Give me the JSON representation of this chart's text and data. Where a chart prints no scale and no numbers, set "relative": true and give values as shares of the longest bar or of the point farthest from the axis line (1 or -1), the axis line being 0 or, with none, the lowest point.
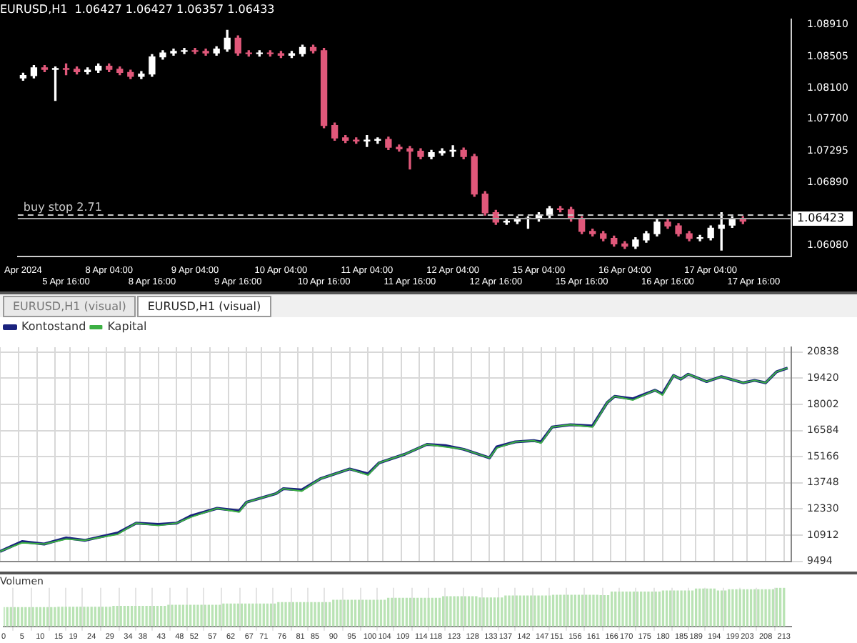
{
  "chart_data": [
    {
      "type": "candlestick",
      "title": "EURUSD,H1  1.06427 1.06427 1.06357 1.06433",
      "annotations": [
        "EURUSD,H1 (visual)",
        "EURUSD,H1 (visual)"
      ],
      "categories": [
        "Apr 2024",
        null,
        null,
        null,
        "5 Apr 16:00",
        null,
        null,
        null,
        "8 Apr 04:00",
        null,
        null,
        null,
        "8 Apr 16:00",
        null,
        null,
        null,
        "9 Apr 04:00",
        null,
        null,
        null,
        "9 Apr 16:00",
        null,
        null,
        null,
        "10 Apr 04:00",
        null,
        null,
        null,
        "10 Apr 16:00",
        null,
        null,
        null,
        "11 Apr 04:00",
        null,
        null,
        null,
        "11 Apr 16:00",
        null,
        null,
        null,
        "12 Apr 04:00",
        null,
        null,
        null,
        "12 Apr 16:00",
        null,
        null,
        null,
        "15 Apr 04:00",
        null,
        null,
        null,
        "15 Apr 16:00",
        null,
        null,
        null,
        "16 Apr 04:00",
        null,
        null,
        null,
        "16 Apr 16:00",
        null,
        null,
        null,
        "17 Apr 04:00",
        null,
        null,
        null,
        "17 Apr 16:00",
        null,
        null,
        null
      ],
      "ohlc": [
        [
          1.0823,
          1.0829,
          1.082,
          1.0826
        ],
        [
          1.0826,
          1.0839,
          1.0823,
          1.0836
        ],
        [
          1.0836,
          1.0839,
          1.0831,
          1.0834
        ],
        [
          1.0834,
          1.0837,
          1.0794,
          1.0835
        ],
        [
          1.0835,
          1.0841,
          1.0827,
          1.0834
        ],
        [
          1.0834,
          1.0837,
          1.0828,
          1.0831
        ],
        [
          1.0831,
          1.0836,
          1.0828,
          1.0833
        ],
        [
          1.0833,
          1.0841,
          1.083,
          1.0838
        ],
        [
          1.0838,
          1.0841,
          1.0831,
          1.0834
        ],
        [
          1.0834,
          1.0837,
          1.0827,
          1.083
        ],
        [
          1.083,
          1.0833,
          1.0822,
          1.0825
        ],
        [
          1.0825,
          1.0831,
          1.0822,
          1.0828
        ],
        [
          1.0828,
          1.0853,
          1.0825,
          1.085
        ],
        [
          1.085,
          1.0858,
          1.0847,
          1.0855
        ],
        [
          1.0855,
          1.086,
          1.0852,
          1.0857
        ],
        [
          1.0857,
          1.0861,
          1.0854,
          1.0858
        ],
        [
          1.0858,
          1.0861,
          1.0854,
          1.0857
        ],
        [
          1.0857,
          1.086,
          1.0852,
          1.0855
        ],
        [
          1.0855,
          1.0863,
          1.0852,
          1.086
        ],
        [
          1.086,
          1.0884,
          1.0857,
          1.0874
        ],
        [
          1.0874,
          1.0877,
          1.0852,
          1.0855
        ],
        [
          1.0855,
          1.0858,
          1.0851,
          1.0854
        ],
        [
          1.0854,
          1.0858,
          1.0851,
          1.0855
        ],
        [
          1.0855,
          1.0858,
          1.0851,
          1.0854
        ],
        [
          1.0854,
          1.0857,
          1.0849,
          1.0852
        ],
        [
          1.0852,
          1.0857,
          1.0849,
          1.0854
        ],
        [
          1.0854,
          1.0865,
          1.0851,
          1.0862
        ],
        [
          1.0862,
          1.0865,
          1.0855,
          1.0858
        ],
        [
          1.0858,
          1.0861,
          1.0759,
          1.0762
        ],
        [
          1.0762,
          1.0765,
          1.0743,
          1.0746
        ],
        [
          1.0746,
          1.0749,
          1.074,
          1.0743
        ],
        [
          1.0743,
          1.0746,
          1.0739,
          1.0742
        ],
        [
          1.0742,
          1.0749,
          1.0735,
          1.0743
        ],
        [
          1.0743,
          1.0746,
          1.0739,
          1.0744
        ],
        [
          1.0744,
          1.0747,
          1.0731,
          1.0734
        ],
        [
          1.0734,
          1.0737,
          1.0729,
          1.0732
        ],
        [
          1.0732,
          1.0735,
          1.0706,
          1.0729
        ],
        [
          1.0729,
          1.0732,
          1.0719,
          1.0722
        ],
        [
          1.0722,
          1.073,
          1.0719,
          1.0727
        ],
        [
          1.0727,
          1.0732,
          1.0724,
          1.0729
        ],
        [
          1.0729,
          1.0736,
          1.0722,
          1.073
        ],
        [
          1.073,
          1.0733,
          1.0719,
          1.0722
        ],
        [
          1.0722,
          1.0725,
          1.0671,
          1.0674
        ],
        [
          1.0674,
          1.0677,
          1.0647,
          1.065
        ],
        [
          1.065,
          1.0653,
          1.0635,
          1.0638
        ],
        [
          1.0638,
          1.0642,
          1.0635,
          1.0639
        ],
        [
          1.0639,
          1.0645,
          1.0636,
          1.0642
        ],
        [
          1.0642,
          1.0645,
          1.063,
          1.0643
        ],
        [
          1.0643,
          1.065,
          1.0639,
          1.0647
        ],
        [
          1.0647,
          1.0658,
          1.0644,
          1.0655
        ],
        [
          1.0655,
          1.0658,
          1.0651,
          1.0654
        ],
        [
          1.0654,
          1.0657,
          1.0639,
          1.0642
        ],
        [
          1.0642,
          1.0645,
          1.0623,
          1.0626
        ],
        [
          1.0626,
          1.0629,
          1.062,
          1.0623
        ],
        [
          1.0623,
          1.0626,
          1.0614,
          1.0617
        ],
        [
          1.0617,
          1.062,
          1.0607,
          1.061
        ],
        [
          1.061,
          1.0613,
          1.0604,
          1.0607
        ],
        [
          1.0607,
          1.0618,
          1.0604,
          1.0615
        ],
        [
          1.0615,
          1.0626,
          1.0612,
          1.0623
        ],
        [
          1.0623,
          1.0641,
          1.062,
          1.0638
        ],
        [
          1.0638,
          1.0641,
          1.063,
          1.0633
        ],
        [
          1.0633,
          1.0636,
          1.062,
          1.0623
        ],
        [
          1.0623,
          1.0626,
          1.0614,
          1.0617
        ],
        [
          1.0617,
          1.0621,
          1.0614,
          1.0618
        ],
        [
          1.0618,
          1.0633,
          1.0615,
          1.063
        ],
        [
          1.063,
          1.065,
          1.0602,
          1.0634
        ],
        [
          1.0634,
          1.0645,
          1.0631,
          1.0642
        ],
        [
          1.0642,
          1.0645,
          1.0636,
          1.0639
        ],
        null,
        null,
        null,
        null
      ],
      "ylim": [
        1.0594,
        1.0898
      ],
      "yticks": [
        {
          "value": 1.0891,
          "label": "1.08910"
        },
        {
          "value": 1.08505,
          "label": "1.08505"
        },
        {
          "value": 1.081,
          "label": "1.08100"
        },
        {
          "value": 1.077,
          "label": "1.07700"
        },
        {
          "value": 1.07295,
          "label": "1.07295"
        },
        {
          "value": 1.0689,
          "label": "1.06890"
        },
        {
          "value": 1.0608,
          "label": "1.06080"
        }
      ],
      "ref_lines": [
        {
          "axis": "y",
          "value": 1.0647,
          "label": "buy stop 2.71",
          "color": "#c8c8c8",
          "line_style": "dashed"
        },
        {
          "axis": "y",
          "value": 1.06423,
          "label": "1.06423",
          "color": "#a0a0a0",
          "line_style": "solid"
        }
      ],
      "grid": false
    },
    {
      "type": "line",
      "legend": "top left",
      "tick_labels": "y",
      "grid": true,
      "series": [
        {
          "name": "Kontostand",
          "color": "#1a237e",
          "x": [
            0,
            6,
            12,
            18,
            23,
            32,
            37,
            43,
            48,
            52,
            59,
            65,
            67,
            75,
            77,
            82,
            87,
            95,
            100,
            103,
            110,
            116,
            121,
            126,
            133,
            135,
            140,
            145,
            147,
            150,
            155,
            161,
            165,
            167,
            172,
            178,
            180,
            183,
            185,
            187,
            192,
            196,
            202,
            205,
            208,
            211,
            214
          ],
          "values": [
            10028,
            10562,
            10428,
            10762,
            10628,
            11029,
            11563,
            11496,
            11563,
            11963,
            12363,
            12230,
            12697,
            13164,
            13431,
            13364,
            13965,
            14499,
            14232,
            14832,
            15299,
            15833,
            15766,
            15566,
            15099,
            15700,
            15967,
            16034,
            15967,
            16768,
            16901,
            16834,
            18102,
            18436,
            18302,
            18769,
            18569,
            19570,
            19370,
            19637,
            19236,
            19503,
            19170,
            19303,
            19170,
            19770,
            19970
          ]
        },
        {
          "name": "Kapital",
          "color": "#3cb043",
          "x": [
            0,
            6,
            12,
            18,
            23,
            32,
            37,
            43,
            48,
            52,
            59,
            65,
            67,
            75,
            77,
            82,
            87,
            95,
            100,
            103,
            110,
            116,
            121,
            126,
            133,
            135,
            140,
            145,
            147,
            150,
            155,
            161,
            165,
            167,
            172,
            178,
            180,
            183,
            185,
            187,
            192,
            196,
            202,
            205,
            208,
            211,
            214
          ],
          "values": [
            10028,
            10495,
            10428,
            10695,
            10628,
            10962,
            11563,
            11430,
            11563,
            11896,
            12363,
            12163,
            12697,
            13164,
            13431,
            13298,
            13965,
            14499,
            14166,
            14832,
            15299,
            15833,
            15700,
            15566,
            15099,
            15633,
            15967,
            16034,
            15900,
            16768,
            16901,
            16767,
            18102,
            18436,
            18235,
            18769,
            18502,
            19570,
            19370,
            19637,
            19236,
            19503,
            19170,
            19303,
            19170,
            19770,
            19970
          ]
        }
      ],
      "xlim": [
        0,
        215
      ],
      "xticks": [
        0,
        5,
        10,
        15,
        19,
        24,
        29,
        34,
        38,
        43,
        48,
        52,
        57,
        62,
        67,
        71,
        76,
        81,
        85,
        90,
        95,
        100,
        104,
        109,
        114,
        118,
        123,
        128,
        133,
        137,
        142,
        147,
        151,
        156,
        161,
        166,
        170,
        175,
        180,
        185,
        189,
        194,
        199,
        203,
        208,
        213
      ],
      "ylim": [
        9494,
        21100
      ],
      "yticks": [
        9494,
        10912,
        12330,
        13748,
        15166,
        16584,
        18002,
        19420,
        20838
      ]
    },
    {
      "type": "bar",
      "title": "Volumen",
      "relative": true,
      "tick_labels": "x",
      "grid": "x",
      "xlim": [
        0,
        215
      ],
      "xticks": [
        0,
        5,
        10,
        15,
        19,
        24,
        29,
        34,
        38,
        43,
        48,
        52,
        57,
        62,
        67,
        71,
        76,
        81,
        85,
        90,
        95,
        100,
        104,
        109,
        114,
        118,
        123,
        128,
        133,
        137,
        142,
        147,
        151,
        156,
        161,
        166,
        170,
        175,
        180,
        185,
        189,
        194,
        199,
        203,
        208,
        213
      ],
      "series": [
        {
          "color": "#b9e3b4",
          "x": [
            0,
            1,
            2,
            3,
            4,
            5,
            6,
            7,
            8,
            9,
            10,
            11,
            12,
            13,
            14,
            15,
            16,
            17,
            18,
            19,
            20,
            21,
            22,
            23,
            24,
            25,
            26,
            27,
            28,
            29,
            30,
            31,
            32,
            33,
            34,
            35,
            36,
            37,
            38,
            39,
            40,
            41,
            42,
            43,
            44,
            45,
            46,
            47,
            48,
            49,
            50,
            51,
            52,
            53,
            54,
            55,
            56,
            57,
            58,
            59,
            60,
            61,
            62,
            63,
            64,
            65,
            66,
            67,
            68,
            69,
            70,
            71,
            72,
            73,
            74,
            75,
            76,
            77,
            78,
            79,
            80,
            81,
            82,
            83,
            84,
            85,
            86,
            87,
            88,
            89,
            90,
            91,
            92,
            93,
            94,
            95,
            96,
            97,
            98,
            99,
            100,
            101,
            102,
            103,
            104,
            105,
            106,
            107,
            108,
            109,
            110,
            111,
            112,
            113,
            114,
            115,
            116,
            117,
            118,
            119,
            120,
            121,
            122,
            123,
            124,
            125,
            126,
            127,
            128,
            129,
            130,
            131,
            132,
            133,
            134,
            135,
            136,
            137,
            138,
            139,
            140,
            141,
            142,
            143,
            144,
            145,
            146,
            147,
            148,
            149,
            150,
            151,
            152,
            153,
            154,
            155,
            156,
            157,
            158,
            159,
            160,
            161,
            162,
            163,
            164,
            165,
            166,
            167,
            168,
            169,
            170,
            171,
            172,
            173,
            174,
            175,
            176,
            177,
            178,
            179,
            180,
            181,
            182,
            183,
            184,
            185,
            186,
            187,
            188,
            189,
            190,
            191,
            192,
            193,
            194,
            195,
            196,
            197,
            198,
            199,
            200,
            201,
            202,
            203,
            204,
            205,
            206,
            207,
            208,
            209,
            210,
            211,
            212,
            213
          ],
          "values": [
            0.49,
            0.49,
            0.49,
            0.49,
            0.49,
            0.49,
            0.49,
            0.49,
            0.49,
            0.49,
            0.49,
            0.49,
            0.49,
            0.49,
            0.49,
            0.5,
            0.5,
            0.5,
            0.5,
            0.5,
            0.5,
            0.5,
            0.5,
            0.5,
            0.5,
            0.5,
            0.5,
            0.5,
            0.5,
            0.5,
            0.52,
            0.52,
            0.52,
            0.52,
            0.52,
            0.52,
            0.52,
            0.52,
            0.52,
            0.52,
            0.52,
            0.52,
            0.52,
            0.52,
            0.52,
            0.55,
            0.55,
            0.55,
            0.55,
            0.55,
            0.55,
            0.55,
            0.55,
            0.55,
            0.55,
            0.55,
            0.55,
            0.55,
            0.55,
            0.55,
            0.58,
            0.58,
            0.58,
            0.58,
            0.58,
            0.58,
            0.58,
            0.58,
            0.58,
            0.58,
            0.58,
            0.58,
            0.58,
            0.58,
            0.58,
            0.62,
            0.62,
            0.62,
            0.62,
            0.62,
            0.62,
            0.62,
            0.62,
            0.62,
            0.62,
            0.62,
            0.62,
            0.62,
            0.62,
            0.62,
            0.68,
            0.68,
            0.68,
            0.68,
            0.68,
            0.68,
            0.68,
            0.68,
            0.68,
            0.68,
            0.68,
            0.68,
            0.68,
            0.68,
            0.68,
            0.73,
            0.73,
            0.73,
            0.73,
            0.73,
            0.73,
            0.73,
            0.73,
            0.73,
            0.73,
            0.73,
            0.73,
            0.73,
            0.73,
            0.73,
            0.77,
            0.77,
            0.77,
            0.77,
            0.77,
            0.77,
            0.77,
            0.77,
            0.77,
            0.77,
            0.74,
            0.74,
            0.74,
            0.74,
            0.74,
            0.74,
            0.74,
            0.79,
            0.79,
            0.79,
            0.79,
            0.79,
            0.79,
            0.79,
            0.79,
            0.79,
            0.79,
            0.79,
            0.79,
            0.79,
            0.81,
            0.81,
            0.81,
            0.81,
            0.81,
            0.81,
            0.81,
            0.81,
            0.81,
            0.81,
            0.81,
            0.81,
            0.81,
            0.8,
            0.8,
            0.8,
            0.89,
            0.89,
            0.89,
            0.89,
            0.89,
            0.89,
            0.89,
            0.89,
            0.89,
            0.89,
            0.89,
            0.89,
            0.89,
            0.89,
            0.92,
            0.92,
            0.92,
            0.92,
            0.92,
            0.92,
            0.92,
            0.92,
            0.92,
            0.97,
            0.97,
            0.97,
            0.97,
            0.97,
            0.97,
            0.92,
            0.92,
            0.92,
            0.95,
            0.95,
            0.95,
            0.95,
            0.95,
            0.95,
            0.95,
            0.95,
            0.95,
            0.95,
            0.95,
            0.95,
            0.95,
            1,
            1,
            1
          ]
        }
      ]
    }
  ]
}
